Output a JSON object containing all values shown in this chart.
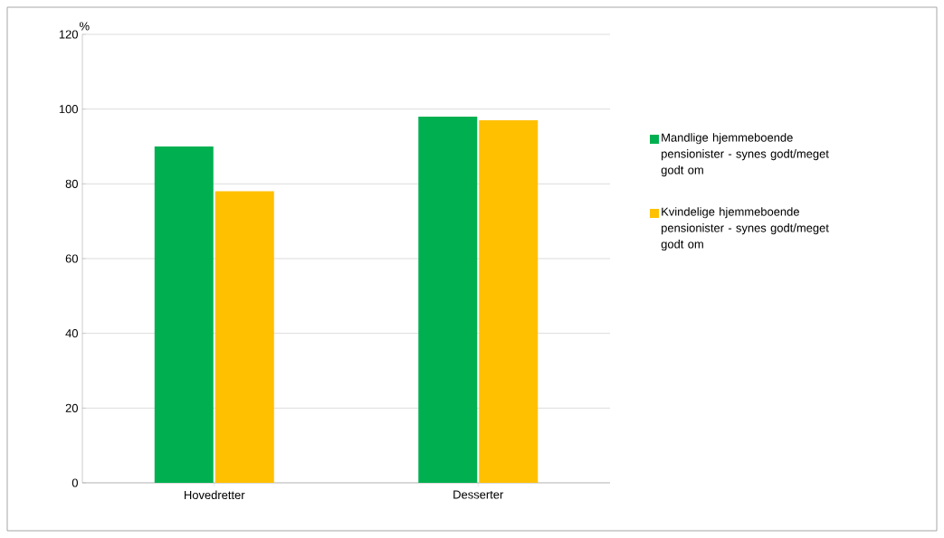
{
  "chart_data": {
    "type": "bar",
    "ylabel": "%",
    "categories": [
      "Hovedretter",
      "Desserter"
    ],
    "series": [
      {
        "name": "Mandlige hjemmeboende pensionister - synes godt/meget godt om",
        "color": "#00b050",
        "values": [
          90,
          98
        ]
      },
      {
        "name": "Kvindelige hjemmeboende pensionister - synes godt/meget godt om",
        "color": "#ffc000",
        "values": [
          78,
          97
        ]
      }
    ],
    "ylim": [
      0,
      120
    ],
    "yticks": [
      0,
      20,
      40,
      60,
      80,
      100,
      120
    ],
    "grid": "y",
    "legend": "right"
  }
}
